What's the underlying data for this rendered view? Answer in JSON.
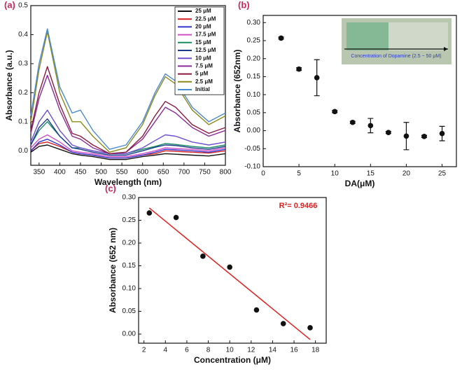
{
  "chart_data": [
    {
      "type": "line",
      "panel_label": "(a)",
      "x_label": "Wavelength (nm)",
      "y_label": "Absorbance (a.u.)",
      "x": [
        330,
        350,
        370,
        400,
        430,
        450,
        480,
        520,
        560,
        600,
        630,
        655,
        680,
        720,
        760,
        800
      ],
      "xlim": [
        330,
        800
      ],
      "xticks": [
        350,
        400,
        450,
        500,
        550,
        600,
        650,
        700,
        750,
        800
      ],
      "ylim": [
        -0.05,
        0.5
      ],
      "yticks": [
        {
          "value": 0,
          "label": "0.0"
        },
        0.1,
        0.2,
        0.3,
        0.4,
        0.5
      ],
      "legend": "upper right",
      "series": [
        {
          "name": "25 μM",
          "color": "#111111",
          "values": [
            -0.005,
            0.015,
            0.02,
            0.005,
            -0.01,
            -0.015,
            -0.02,
            -0.03,
            -0.03,
            -0.02,
            -0.015,
            -0.01,
            -0.012,
            -0.015,
            -0.018,
            -0.01
          ]
        },
        {
          "name": "22.5 μM",
          "color": "#d42020",
          "values": [
            0,
            0.025,
            0.03,
            0.015,
            -0.005,
            -0.01,
            -0.015,
            -0.025,
            -0.025,
            -0.015,
            -0.01,
            0,
            -0.002,
            -0.005,
            -0.008,
            0
          ]
        },
        {
          "name": "20 μM",
          "color": "#3535d0",
          "values": [
            0,
            0.03,
            0.04,
            0.02,
            -0.005,
            -0.01,
            -0.015,
            -0.025,
            -0.025,
            -0.015,
            -0.005,
            0.005,
            0.003,
            0,
            -0.005,
            0.005
          ]
        },
        {
          "name": "17.5 μM",
          "color": "#d050c8",
          "values": [
            0.01,
            0.04,
            0.055,
            0.03,
            0,
            -0.005,
            -0.01,
            -0.02,
            -0.02,
            -0.01,
            0,
            0.01,
            0.008,
            0.005,
            0,
            0.01
          ]
        },
        {
          "name": "15 μM",
          "color": "#188a60",
          "values": [
            0.02,
            0.07,
            0.1,
            0.05,
            0.01,
            0.01,
            0,
            -0.01,
            -0.01,
            0.005,
            0.015,
            0.025,
            0.022,
            0.015,
            0.01,
            0.02
          ]
        },
        {
          "name": "12.5 μM",
          "color": "#1a3a8a",
          "values": [
            0.02,
            0.08,
            0.11,
            0.05,
            0.01,
            0.005,
            -0.005,
            -0.015,
            -0.015,
            0,
            0.012,
            0.02,
            0.018,
            0.01,
            0.005,
            0.015
          ]
        },
        {
          "name": "10 μM",
          "color": "#7050d0",
          "values": [
            0.03,
            0.1,
            0.14,
            0.07,
            0.02,
            0.01,
            0,
            -0.01,
            -0.01,
            0.01,
            0.035,
            0.055,
            0.05,
            0.03,
            0.02,
            0.03
          ]
        },
        {
          "name": "7.5 μM",
          "color": "#8a2a9a",
          "values": [
            0.06,
            0.18,
            0.26,
            0.14,
            0.05,
            0.04,
            0.01,
            -0.01,
            -0.005,
            0.04,
            0.1,
            0.15,
            0.13,
            0.08,
            0.05,
            0.07
          ]
        },
        {
          "name": "5 μM",
          "color": "#8a1a40",
          "values": [
            0.07,
            0.2,
            0.29,
            0.16,
            0.06,
            0.05,
            0.02,
            -0.01,
            -0.005,
            0.05,
            0.12,
            0.17,
            0.15,
            0.09,
            0.06,
            0.08
          ]
        },
        {
          "name": "2.5 μM",
          "color": "#8a8a18",
          "values": [
            0.1,
            0.28,
            0.41,
            0.2,
            0.1,
            0.1,
            0.05,
            -0.005,
            0.01,
            0.09,
            0.19,
            0.255,
            0.23,
            0.14,
            0.09,
            0.12
          ]
        },
        {
          "name": "Initial",
          "color": "#4a8ad0",
          "values": [
            0.12,
            0.3,
            0.42,
            0.22,
            0.13,
            0.14,
            0.07,
            0.005,
            0.02,
            0.1,
            0.2,
            0.265,
            0.24,
            0.15,
            0.1,
            0.13
          ]
        }
      ]
    },
    {
      "type": "scatter",
      "panel_label": "(b)",
      "x_label": "DA(μM)",
      "y_label": "Absorbance (652nm)",
      "inset_label": "Concentration of Dopamine  (2.5 ~ 50 μM)",
      "x": [
        2.5,
        5,
        7.5,
        10,
        12.5,
        15,
        17.5,
        20,
        22.5,
        25
      ],
      "values": [
        0.257,
        0.171,
        0.147,
        0.053,
        0.023,
        0.014,
        -0.005,
        -0.015,
        -0.016,
        -0.008
      ],
      "errors": [
        0.003,
        0.004,
        0.05,
        0.003,
        0.003,
        0.02,
        0.003,
        0.038,
        0.003,
        0.02
      ],
      "color": "#111111",
      "xlim": [
        0,
        27
      ],
      "xticks": [
        0,
        5,
        10,
        15,
        20,
        25
      ],
      "ylim": [
        -0.1,
        0.32
      ],
      "yticks": [
        {
          "value": -0.1,
          "label": "-0.10"
        },
        {
          "value": -0.05,
          "label": "-0.05"
        },
        {
          "value": 0,
          "label": "0.00"
        },
        0.05,
        {
          "value": 0.1,
          "label": "0.10"
        },
        0.15,
        {
          "value": 0.2,
          "label": "0.20"
        },
        0.25,
        {
          "value": 0.3,
          "label": "0.30"
        }
      ]
    },
    {
      "type": "scatter",
      "panel_label": "(c)",
      "x_label": "Concentration (μM)",
      "y_label": "Absorbance (652 nm)",
      "annotation": "R²= 0.9466",
      "x": [
        2.5,
        5,
        7.5,
        10,
        12.5,
        15,
        17.5
      ],
      "values": [
        0.266,
        0.256,
        0.171,
        0.147,
        0.053,
        0.023,
        0.014
      ],
      "color": "#111111",
      "fit": {
        "x": [
          2.5,
          17.5
        ],
        "y": [
          0.277,
          -0.012
        ],
        "color": "#e02020"
      },
      "xlim": [
        1.5,
        19
      ],
      "xticks": [
        2,
        4,
        6,
        8,
        10,
        12,
        14,
        16,
        18
      ],
      "ylim": [
        -0.02,
        0.3
      ],
      "yticks": [
        {
          "value": 0,
          "label": "0.00"
        },
        0.05,
        {
          "value": 0.1,
          "label": "0.10"
        },
        0.15,
        {
          "value": 0.2,
          "label": "0.20"
        },
        0.25,
        {
          "value": 0.3,
          "label": "0.30"
        }
      ]
    }
  ]
}
